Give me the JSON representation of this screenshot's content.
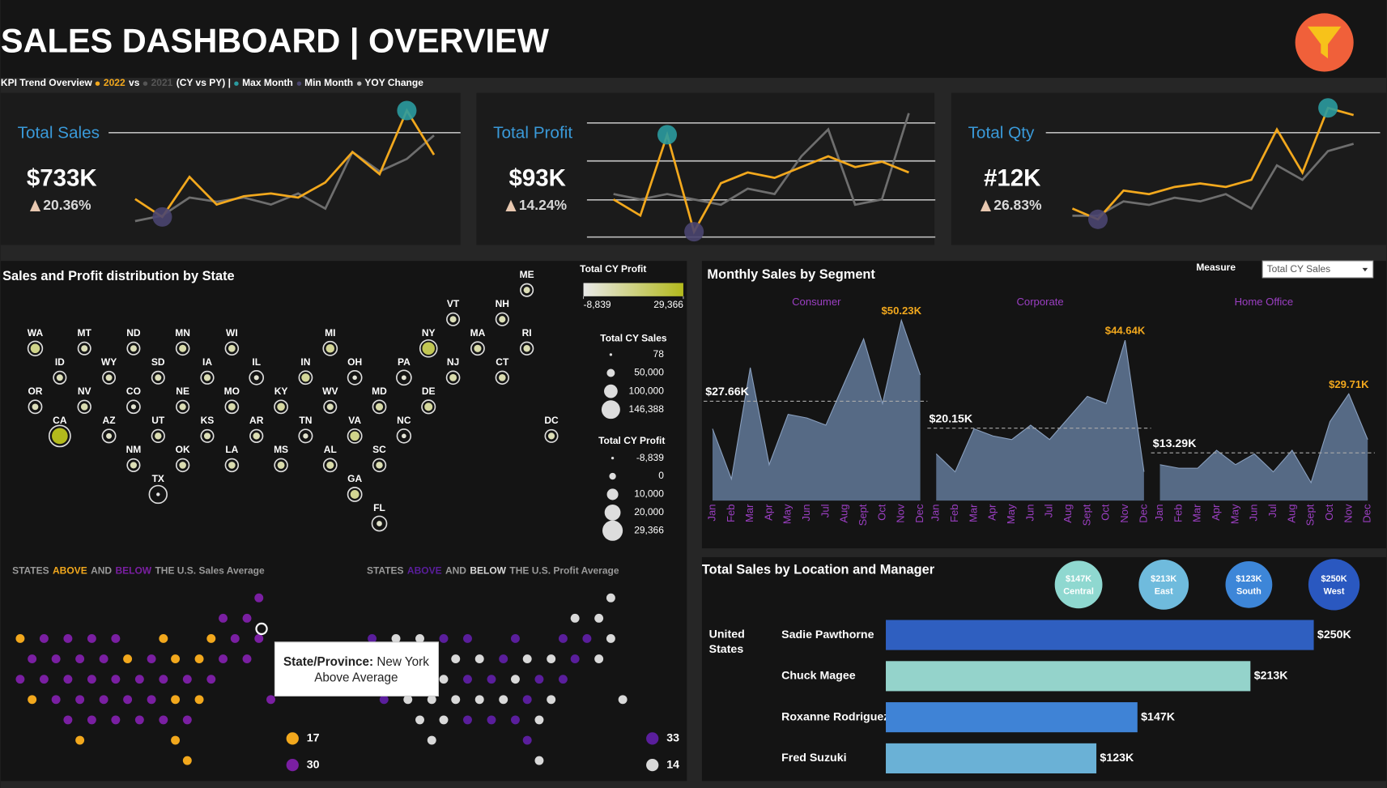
{
  "header": {
    "title": "SALES DASHBOARD | OVERVIEW",
    "subtitle_lead": "KPI Trend Overview",
    "subtitle_vs": "vs",
    "subtitle_mode": "(CY vs PY) |",
    "max_label": "Max Month",
    "min_label": "Min Month",
    "change_label": "YOY Change"
  },
  "chart_data": [
    {
      "type": "sparkline",
      "title": "Total Sales",
      "value": "$733K",
      "change": "20.36%",
      "series": [
        {
          "name": "2022",
          "color": "#f2a81d",
          "values": [
            44,
            31,
            60,
            40,
            46,
            48,
            45,
            56,
            78,
            62,
            108,
            76
          ]
        },
        {
          "name": "2021",
          "color": "#6e6e6e",
          "values": [
            28,
            32,
            45,
            42,
            45,
            40,
            48,
            37,
            78,
            64,
            73,
            90
          ]
        }
      ]
    },
    {
      "type": "sparkline",
      "title": "Total Profit",
      "value": "$93K",
      "change": "14.24%",
      "grid": true,
      "series": [
        {
          "name": "2022",
          "color": "#f2a81d",
          "values": [
            4,
            1,
            16,
            -2,
            7,
            9,
            8,
            10,
            12,
            10,
            11,
            9
          ]
        },
        {
          "name": "2021",
          "color": "#6e6e6e",
          "values": [
            5,
            4,
            5,
            4,
            3,
            6,
            5,
            12,
            17,
            3,
            4,
            20
          ]
        }
      ]
    },
    {
      "type": "sparkline",
      "title": "Total Qty",
      "value": "#12K",
      "change": "26.83%",
      "series": [
        {
          "name": "2022",
          "color": "#f2a81d",
          "values": [
            0.6,
            0.45,
            0.85,
            0.8,
            0.9,
            0.95,
            0.9,
            1.0,
            1.7,
            1.1,
            2.0,
            1.9
          ]
        },
        {
          "name": "2021",
          "color": "#6e6e6e",
          "values": [
            0.5,
            0.5,
            0.7,
            0.65,
            0.75,
            0.7,
            0.8,
            0.6,
            1.2,
            1.0,
            1.4,
            1.5
          ]
        }
      ]
    },
    {
      "type": "tilemap",
      "title": "Sales and Profit distribution by State",
      "states": [
        "ME",
        "VT",
        "NH",
        "WA",
        "MT",
        "ND",
        "MN",
        "WI",
        "MI",
        "NY",
        "MA",
        "RI",
        "ID",
        "WY",
        "SD",
        "IA",
        "IL",
        "IN",
        "OH",
        "PA",
        "NJ",
        "CT",
        "OR",
        "NV",
        "CO",
        "NE",
        "MO",
        "KY",
        "WV",
        "MD",
        "DE",
        "CA",
        "AZ",
        "UT",
        "KS",
        "AR",
        "TN",
        "VA",
        "NC",
        "DC",
        "NM",
        "OK",
        "LA",
        "MS",
        "AL",
        "SC",
        "TX",
        "GA",
        "FL"
      ],
      "sales": [
        1300,
        900,
        2400,
        33000,
        1200,
        900,
        9300,
        8000,
        24000,
        76000,
        12000,
        4600,
        2100,
        78,
        700,
        3400,
        23000,
        11000,
        24000,
        37000,
        9200,
        5200,
        12000,
        6200,
        10000,
        3500,
        10000,
        11000,
        1200,
        11000,
        15000,
        146388,
        13000,
        4700,
        1700,
        3900,
        14000,
        26000,
        20000,
        1600,
        2300,
        5900,
        6800,
        7300,
        11000,
        6300,
        87000,
        25000,
        37000
      ],
      "profit": [
        450,
        250,
        700,
        9000,
        400,
        230,
        2700,
        2000,
        6600,
        19000,
        3000,
        1300,
        200,
        20,
        200,
        1000,
        -4500,
        6000,
        -6000,
        -5000,
        2600,
        1800,
        -300,
        1700,
        -4500,
        700,
        2600,
        4400,
        300,
        3300,
        5400,
        29366,
        -2300,
        1400,
        500,
        1500,
        -3700,
        9000,
        -5700,
        600,
        700,
        1700,
        1900,
        2600,
        3000,
        1400,
        -8839,
        7200,
        -3000
      ],
      "color_legend": {
        "title": "Total CY Profit",
        "colors": [
          "#e8e8e8",
          "#b3ba1c"
        ],
        "ticks": [
          {
            "value": -8839,
            "label": "-8,839"
          },
          {
            "value": 29366,
            "label": "29,366"
          }
        ]
      },
      "sales_size_legend": {
        "title": "Total CY Sales",
        "ticks": [
          78,
          {
            "value": 50000,
            "label": "50,000"
          },
          {
            "value": 100000,
            "label": "100,000"
          },
          {
            "value": 146388,
            "label": "146,388"
          }
        ]
      },
      "profit_size_legend": {
        "title": "Total CY Profit",
        "ticks": [
          {
            "value": -8839,
            "label": "-8,839"
          },
          0,
          {
            "value": 10000,
            "label": "10,000"
          },
          {
            "value": 20000,
            "label": "20,000"
          },
          {
            "value": 29366,
            "label": "29,366"
          }
        ]
      }
    },
    {
      "type": "area",
      "title": "Monthly Sales by Segment",
      "measure_label": "Measure",
      "measure_value": "Total CY Sales",
      "categories": [
        "Jan",
        "Feb",
        "Mar",
        "Apr",
        "May",
        "Jun",
        "Jul",
        "Aug",
        "Sept",
        "Oct",
        "Nov",
        "Dec"
      ],
      "series": [
        {
          "name": "Consumer",
          "color": "#5d7391",
          "values": [
            20,
            6,
            37,
            10,
            24,
            23,
            21,
            33,
            45,
            27,
            50.23,
            35
          ],
          "value_labels": [
            null,
            null,
            null,
            null,
            null,
            null,
            null,
            null,
            null,
            null,
            "$50.23K",
            null
          ],
          "reference": {
            "value": 27.66,
            "label": "$27.66K"
          }
        },
        {
          "name": "Corporate",
          "color": "#5d7391",
          "values": [
            13,
            8,
            20,
            18,
            17,
            21,
            17,
            23,
            29,
            27,
            44.64,
            8
          ],
          "value_labels": [
            null,
            null,
            null,
            null,
            null,
            null,
            null,
            null,
            null,
            null,
            "$44.64K",
            null
          ],
          "reference": {
            "value": 20.15,
            "label": "$20.15K"
          }
        },
        {
          "name": "Home Office",
          "color": "#5d7391",
          "values": [
            10,
            9,
            9,
            14,
            10,
            13,
            8,
            14,
            5,
            22,
            29.71,
            17
          ],
          "value_labels": [
            null,
            null,
            null,
            null,
            null,
            null,
            null,
            null,
            null,
            null,
            "$29.71K",
            null
          ],
          "reference": {
            "value": 13.29,
            "label": "$13.29K"
          }
        }
      ]
    },
    {
      "type": "dotgrid",
      "prefix": "STATES",
      "joiner": "AND",
      "suffix": "THE U.S. Sales Average",
      "series": [
        {
          "name": "ABOVE",
          "color": "#f2a81d",
          "count": 17
        },
        {
          "name": "BELOW",
          "color": "#7a1fa2",
          "count": 30
        }
      ]
    },
    {
      "type": "dotgrid",
      "prefix": "STATES",
      "joiner": "AND",
      "suffix": "THE U.S. Profit Average",
      "series": [
        {
          "name": "ABOVE",
          "color": "#5a1e9c",
          "count": 33
        },
        {
          "name": "BELOW",
          "color": "#d9d9d9",
          "count": 14
        }
      ]
    },
    {
      "type": "hbar",
      "title": "Total Sales by Location and Manager",
      "location": "United States",
      "categories": [
        "Sadie Pawthorne",
        "Chuck Magee",
        "Roxanne Rodriguez",
        "Fred Suzuki"
      ],
      "values": [
        250,
        213,
        147,
        123
      ],
      "value_labels": [
        "$250K",
        "$213K",
        "$147K",
        "$123K"
      ],
      "colors": [
        "#2f5fc0",
        "#94d3cb",
        "#3f83d6",
        "#6ab1d6"
      ],
      "regions": [
        {
          "name": "Central",
          "value": 147,
          "label": "$147K",
          "color": "#8fd8d0"
        },
        {
          "name": "East",
          "value": 213,
          "label": "$213K",
          "color": "#6fbbdd"
        },
        {
          "name": "South",
          "value": 123,
          "label": "$123K",
          "color": "#3d86d8"
        },
        {
          "name": "West",
          "value": 250,
          "label": "$250K",
          "color": "#2a58c0"
        }
      ]
    }
  ],
  "tooltip": {
    "field": "State/Province:",
    "value": "New York",
    "status": "Above Average"
  }
}
